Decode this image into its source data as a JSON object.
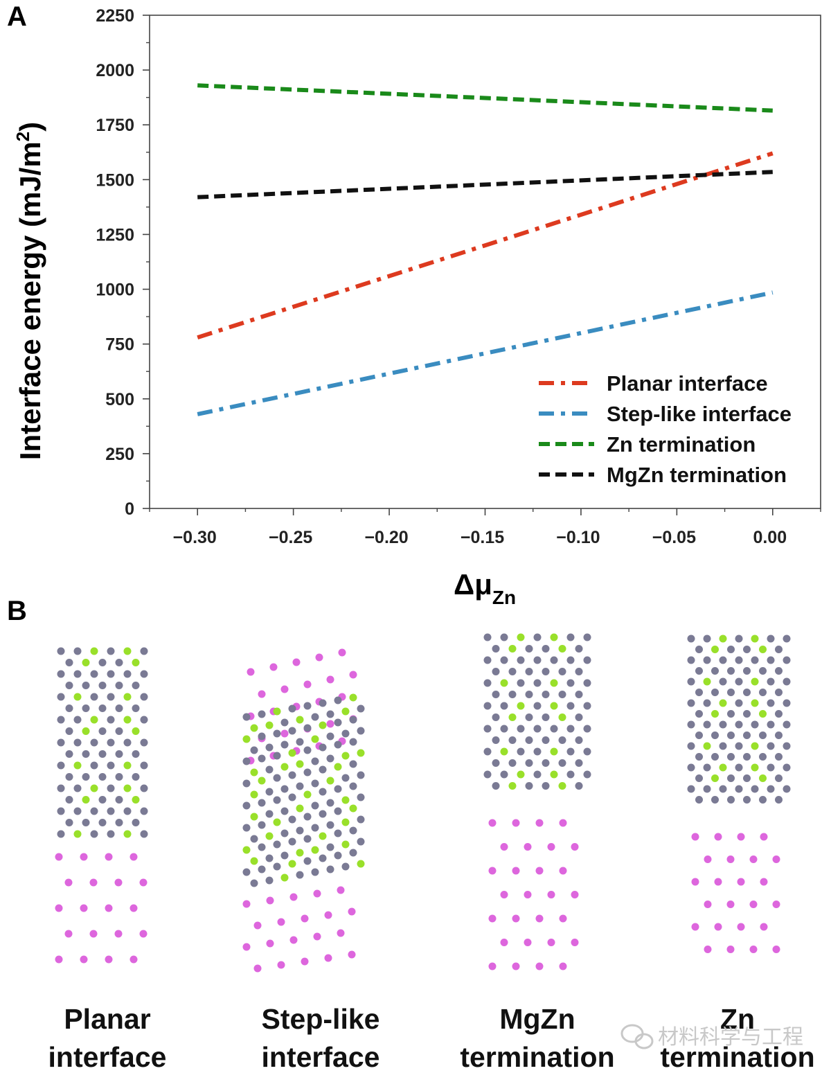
{
  "panel_a_label": "A",
  "panel_b_label": "B",
  "chart_data": {
    "type": "line",
    "title": "",
    "xlabel": "Δμ",
    "xlabel_subscript": "Zn",
    "ylabel": "Interface energy (mJ/m",
    "ylabel_sup": "2",
    "ylabel_close": ")",
    "xlim": [
      -0.325,
      0.025
    ],
    "ylim": [
      0,
      2250
    ],
    "xticks": [
      -0.3,
      -0.25,
      -0.2,
      -0.15,
      -0.1,
      -0.05,
      0.0
    ],
    "xtick_labels": [
      "−0.30",
      "−0.25",
      "−0.20",
      "−0.15",
      "−0.10",
      "−0.05",
      "0.00"
    ],
    "yticks": [
      0,
      250,
      500,
      750,
      1000,
      1250,
      1500,
      1750,
      2000,
      2250
    ],
    "ytick_labels": [
      "0",
      "250",
      "500",
      "750",
      "1000",
      "1250",
      "1500",
      "1750",
      "2000",
      "2250"
    ],
    "grid": false,
    "legend_position": "bottom-right",
    "series": [
      {
        "name": "Planar interface",
        "color": "#dd3a1f",
        "dash": "dash-dot",
        "x": [
          -0.3,
          0.0
        ],
        "y": [
          780,
          1620
        ]
      },
      {
        "name": "Step-like interface",
        "color": "#3a8cc0",
        "dash": "dash-dot",
        "x": [
          -0.3,
          0.0
        ],
        "y": [
          430,
          985
        ]
      },
      {
        "name": "Zn termination",
        "color": "#1a8a1a",
        "dash": "dash",
        "x": [
          -0.3,
          0.0
        ],
        "y": [
          1930,
          1815
        ]
      },
      {
        "name": "MgZn termination",
        "color": "#111111",
        "dash": "dash",
        "x": [
          -0.3,
          0.0
        ],
        "y": [
          1420,
          1535
        ]
      }
    ]
  },
  "structures": {
    "colors": {
      "mg": "#dd66dd",
      "zn": "#7a7a94",
      "ca": "#99e02a"
    },
    "items": [
      {
        "label_line1": "Planar",
        "label_line2": "interface"
      },
      {
        "label_line1": "Step-like",
        "label_line2": "interface"
      },
      {
        "label_line1": "MgZn",
        "label_line2": "termination"
      },
      {
        "label_line1": "Zn",
        "label_line2": "termination"
      }
    ]
  },
  "watermark": {
    "text": "材料科学与工程",
    "icon": "wechat-icon"
  }
}
